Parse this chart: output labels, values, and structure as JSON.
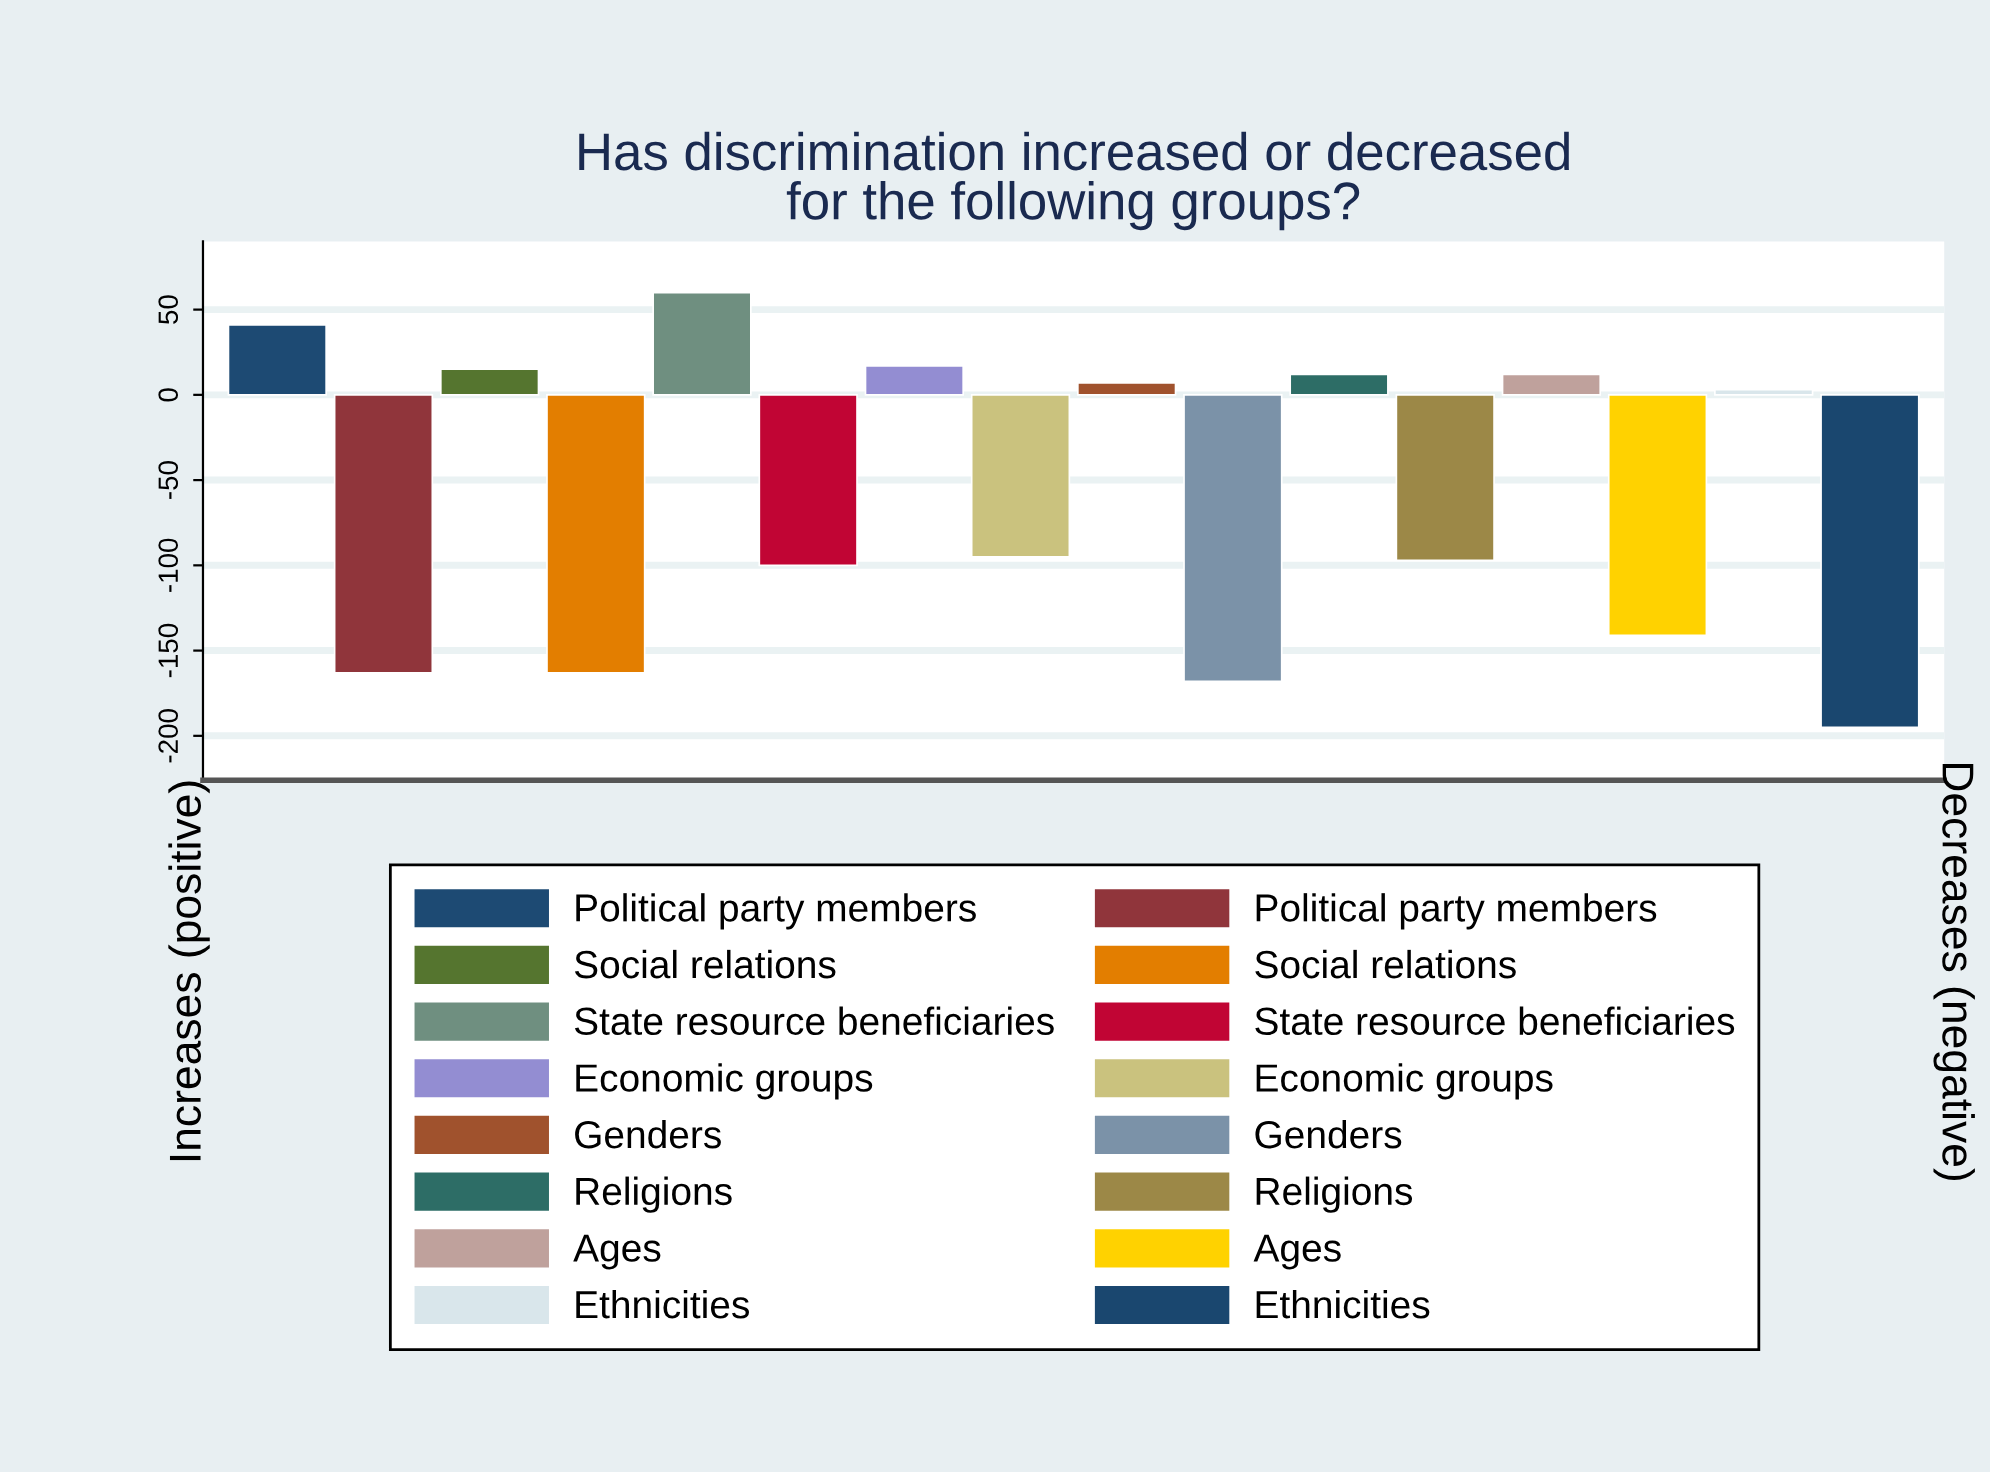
{
  "chart_data": {
    "type": "bar",
    "title": "Has discrimination increased or decreased\nfor the following groups?",
    "ylabel": "Increases (positive)",
    "y2label": "Decreases (negative)",
    "categories": [
      null,
      null,
      null,
      null,
      null,
      null,
      null,
      null,
      null,
      null,
      null,
      null,
      null,
      null,
      null,
      null
    ],
    "series": [
      {
        "name": "Political party members",
        "color": "#1d4a73",
        "values": [
          41,
          null,
          null,
          null,
          null,
          null,
          null,
          null,
          null,
          null,
          null,
          null,
          null,
          null,
          null,
          null
        ]
      },
      {
        "name": "Political party members",
        "color": "#90353b",
        "values": [
          null,
          -163,
          null,
          null,
          null,
          null,
          null,
          null,
          null,
          null,
          null,
          null,
          null,
          null,
          null,
          null
        ]
      },
      {
        "name": "Social relations",
        "color": "#55752f",
        "values": [
          null,
          null,
          15,
          null,
          null,
          null,
          null,
          null,
          null,
          null,
          null,
          null,
          null,
          null,
          null,
          null
        ]
      },
      {
        "name": "Social relations",
        "color": "#e37e00",
        "values": [
          null,
          null,
          null,
          -163,
          null,
          null,
          null,
          null,
          null,
          null,
          null,
          null,
          null,
          null,
          null,
          null
        ]
      },
      {
        "name": "State resource beneficiaries",
        "color": "#6f8f80",
        "values": [
          null,
          null,
          null,
          null,
          60,
          null,
          null,
          null,
          null,
          null,
          null,
          null,
          null,
          null,
          null,
          null
        ]
      },
      {
        "name": "State resource beneficiaries",
        "color": "#c10534",
        "values": [
          null,
          null,
          null,
          null,
          null,
          -100,
          null,
          null,
          null,
          null,
          null,
          null,
          null,
          null,
          null,
          null
        ]
      },
      {
        "name": "Economic groups",
        "color": "#938dd2",
        "values": [
          null,
          null,
          null,
          null,
          null,
          null,
          17,
          null,
          null,
          null,
          null,
          null,
          null,
          null,
          null,
          null
        ]
      },
      {
        "name": "Economic groups",
        "color": "#cac27e",
        "values": [
          null,
          null,
          null,
          null,
          null,
          null,
          null,
          -95,
          null,
          null,
          null,
          null,
          null,
          null,
          null,
          null
        ]
      },
      {
        "name": "Genders",
        "color": "#a0522d",
        "values": [
          null,
          null,
          null,
          null,
          null,
          null,
          null,
          null,
          7,
          null,
          null,
          null,
          null,
          null,
          null,
          null
        ]
      },
      {
        "name": "Genders",
        "color": "#7b92a8",
        "values": [
          null,
          null,
          null,
          null,
          null,
          null,
          null,
          null,
          null,
          -168,
          null,
          null,
          null,
          null,
          null,
          null
        ]
      },
      {
        "name": "Religions",
        "color": "#2d6d66",
        "values": [
          null,
          null,
          null,
          null,
          null,
          null,
          null,
          null,
          null,
          null,
          12,
          null,
          null,
          null,
          null,
          null
        ]
      },
      {
        "name": "Religions",
        "color": "#9c8847",
        "values": [
          null,
          null,
          null,
          null,
          null,
          null,
          null,
          null,
          null,
          null,
          null,
          -97,
          null,
          null,
          null,
          null
        ]
      },
      {
        "name": "Ages",
        "color": "#bfa19c",
        "values": [
          null,
          null,
          null,
          null,
          null,
          null,
          null,
          null,
          null,
          null,
          null,
          null,
          12,
          null,
          null,
          null
        ]
      },
      {
        "name": "Ages",
        "color": "#ffd200",
        "values": [
          null,
          null,
          null,
          null,
          null,
          null,
          null,
          null,
          null,
          null,
          null,
          null,
          null,
          -141,
          null,
          null
        ]
      },
      {
        "name": "Ethnicities",
        "color": "#d9e6eb",
        "values": [
          null,
          null,
          null,
          null,
          null,
          null,
          null,
          null,
          null,
          null,
          null,
          null,
          null,
          null,
          3,
          null
        ]
      },
      {
        "name": "Ethnicities",
        "color": "#1a476f",
        "values": [
          null,
          null,
          null,
          null,
          null,
          null,
          null,
          null,
          null,
          null,
          null,
          null,
          null,
          null,
          null,
          -195
        ]
      }
    ],
    "ylim": [
      -226,
      90
    ],
    "yticks": [
      -200,
      -150,
      -100,
      -50,
      0,
      50
    ],
    "grid": "y",
    "legend": "bottom"
  }
}
